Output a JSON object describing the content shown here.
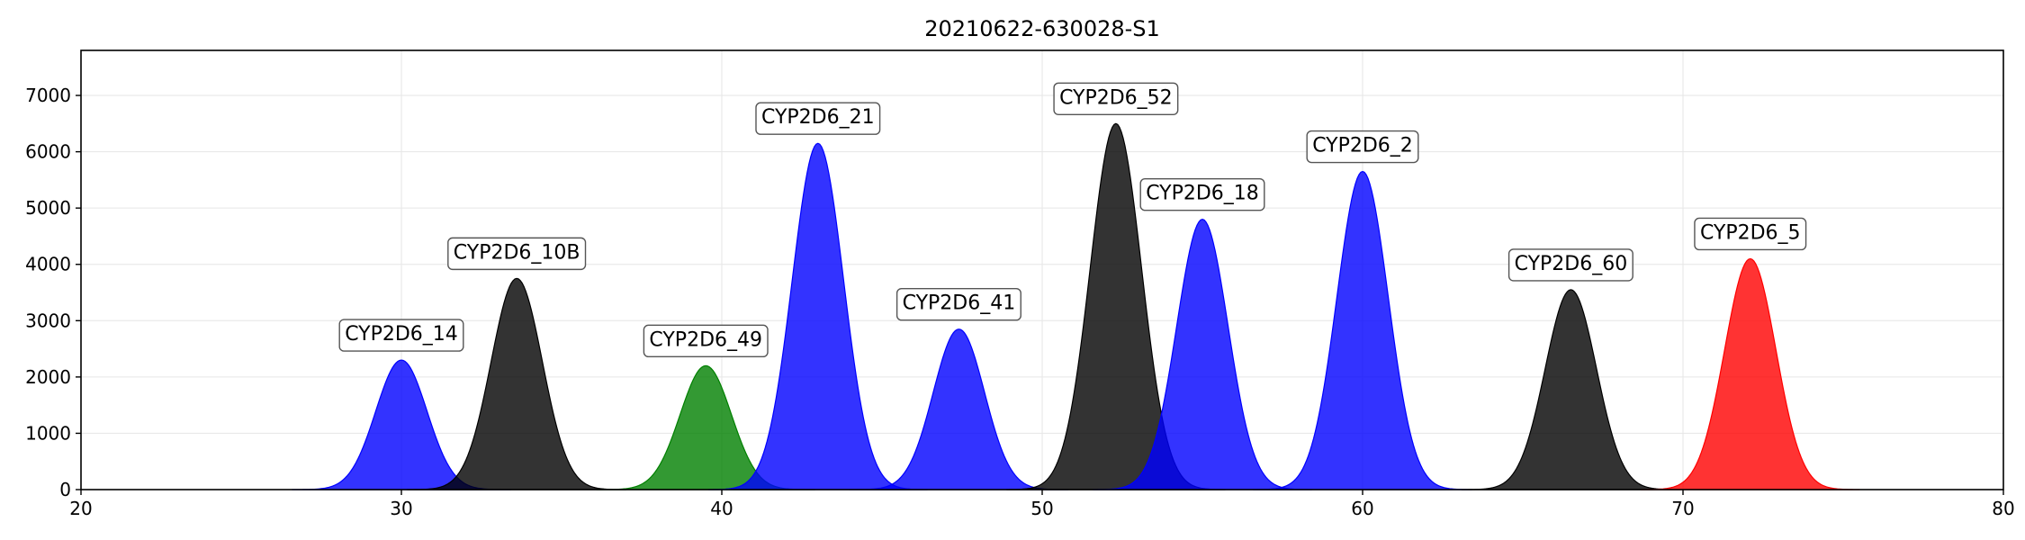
{
  "chart_data": {
    "type": "area",
    "title": "20210622-630028-S1",
    "xlabel": "",
    "ylabel": "",
    "xlim": [
      20,
      80
    ],
    "ylim": [
      0,
      7800
    ],
    "xticks": [
      20,
      30,
      40,
      50,
      60,
      70,
      80
    ],
    "yticks": [
      0,
      1000,
      2000,
      3000,
      4000,
      5000,
      6000,
      7000
    ],
    "grid": true,
    "peaks": [
      {
        "label": "CYP2D6_14",
        "x": 30.0,
        "height": 2300,
        "color": "#0000ff"
      },
      {
        "label": "CYP2D6_10B",
        "x": 33.6,
        "height": 3750,
        "color": "#000000"
      },
      {
        "label": "CYP2D6_49",
        "x": 39.5,
        "height": 2200,
        "color": "#008000"
      },
      {
        "label": "CYP2D6_21",
        "x": 43.0,
        "height": 6150,
        "color": "#0000ff"
      },
      {
        "label": "CYP2D6_41",
        "x": 47.4,
        "height": 2850,
        "color": "#0000ff"
      },
      {
        "label": "CYP2D6_52",
        "x": 52.3,
        "height": 6500,
        "color": "#000000"
      },
      {
        "label": "CYP2D6_18",
        "x": 55.0,
        "height": 4800,
        "color": "#0000ff"
      },
      {
        "label": "CYP2D6_2",
        "x": 60.0,
        "height": 5650,
        "color": "#0000ff"
      },
      {
        "label": "CYP2D6_60",
        "x": 66.5,
        "height": 3550,
        "color": "#000000"
      },
      {
        "label": "CYP2D6_5",
        "x": 72.1,
        "height": 4100,
        "color": "#ff0000"
      }
    ]
  }
}
